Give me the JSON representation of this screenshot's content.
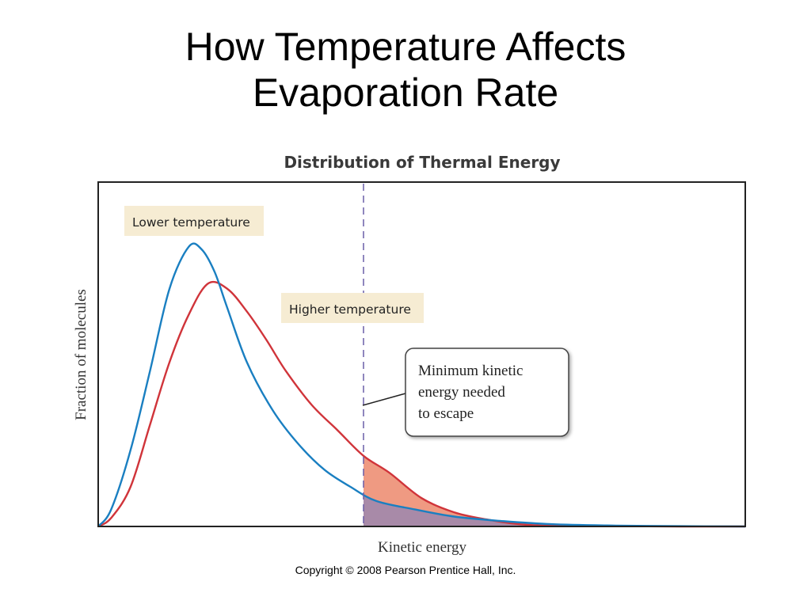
{
  "slide": {
    "title_line1": "How Temperature Affects",
    "title_line2": "Evaporation Rate",
    "copyright": "Copyright © 2008 Pearson Prentice Hall, Inc."
  },
  "chart_data": {
    "type": "line",
    "title": "Distribution of Thermal Energy",
    "xlabel": "Kinetic energy",
    "ylabel": "Fraction of molecules",
    "xlim": [
      0,
      10
    ],
    "ylim": [
      0,
      1
    ],
    "grid": false,
    "ticks": false,
    "series": [
      {
        "name": "Lower temperature",
        "color": "#1a7fc1",
        "x": [
          0,
          0.2,
          0.5,
          0.8,
          1.1,
          1.4,
          1.6,
          1.8,
          2.0,
          2.3,
          2.7,
          3.1,
          3.5,
          3.9,
          4.3,
          4.9,
          5.5,
          6.2,
          7.0,
          8.0,
          9.0,
          10
        ],
        "y": [
          0,
          0.06,
          0.27,
          0.55,
          0.84,
          0.99,
          0.98,
          0.9,
          0.77,
          0.58,
          0.41,
          0.29,
          0.2,
          0.14,
          0.09,
          0.06,
          0.035,
          0.02,
          0.008,
          0.003,
          0.001,
          0.0
        ]
      },
      {
        "name": "Higher temperature",
        "color": "#d0343a",
        "x": [
          0,
          0.2,
          0.5,
          0.8,
          1.1,
          1.4,
          1.7,
          2.0,
          2.3,
          2.6,
          2.9,
          3.3,
          3.7,
          4.1,
          4.5,
          5.0,
          5.5,
          6.0,
          6.5,
          7.0,
          8.0,
          9.0,
          10
        ],
        "y": [
          0,
          0.03,
          0.14,
          0.36,
          0.58,
          0.75,
          0.86,
          0.84,
          0.76,
          0.66,
          0.55,
          0.43,
          0.34,
          0.25,
          0.19,
          0.1,
          0.05,
          0.025,
          0.008,
          0.002,
          0.001,
          0.0,
          0.0
        ]
      }
    ],
    "threshold": {
      "x": 4.1,
      "style": "dashed",
      "color": "#6a5ea8"
    },
    "shaded_region": {
      "from_x": 4.1,
      "lower_fill": "#a88aa8",
      "upper_fill": "#ef9a82"
    },
    "annotations": {
      "lower_label": "Lower temperature",
      "higher_label": "Higher temperature",
      "callout_lines": [
        "Minimum kinetic",
        "energy needed",
        "to escape"
      ]
    },
    "colors": {
      "label_box": "#f6ecd3",
      "frame": "#222222"
    }
  }
}
